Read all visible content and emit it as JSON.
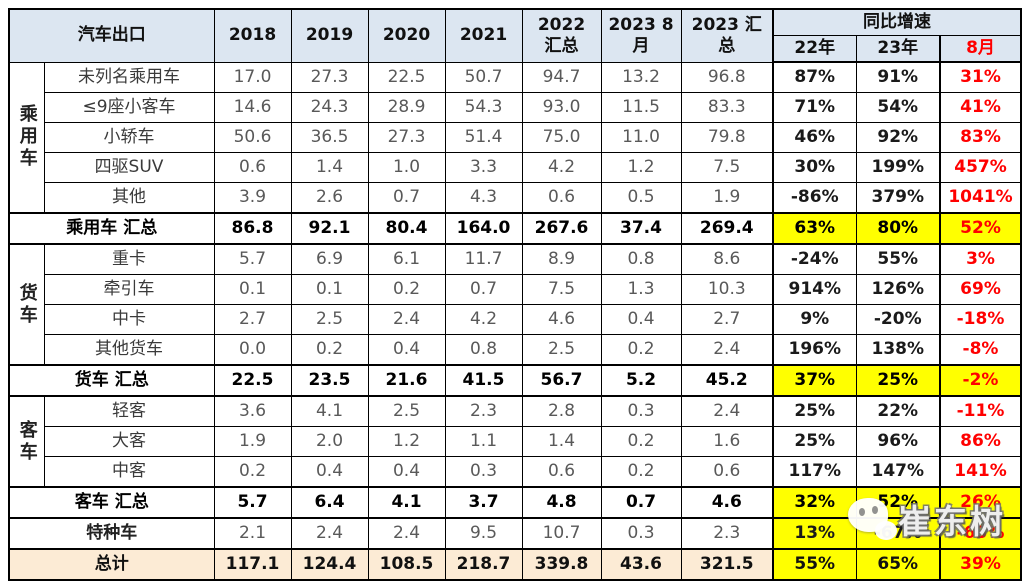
{
  "colors": {
    "header_bg": "#DCE6F1",
    "highlight_yellow": "#FFFF00",
    "total_row_bg": "#FCEBD5",
    "accent_red": "#FF0000",
    "number_gray": "#595959"
  },
  "watermark": {
    "icon": "wechat-icon",
    "text": "崔东树"
  },
  "chart_data": {
    "type": "table",
    "title": "汽车出口",
    "columns": [
      "汽车出口",
      "2018",
      "2019",
      "2020",
      "2021",
      "2022 汇总",
      "2023 8月",
      "2023 汇总",
      "同比增速 22年",
      "同比增速 23年",
      "同比增速 8月"
    ],
    "header": {
      "label": "汽车出口",
      "years": [
        "2018",
        "2019",
        "2020",
        "2021"
      ],
      "col_2022_total": "2022 汇总",
      "col_2023_aug": "2023 8月",
      "col_2023_total": "2023 汇总",
      "growth_title": "同比增速",
      "growth_cols": [
        "22年",
        "23年",
        "8月"
      ]
    },
    "rows": [
      {
        "type": "data",
        "group": {
          "label": "乘用车",
          "span": 5
        },
        "label": "未列名乘用车",
        "values": [
          "17.0",
          "27.3",
          "22.5",
          "50.7",
          "94.7",
          "13.2",
          "96.8"
        ],
        "growth": [
          "87%",
          "91%",
          "31%"
        ]
      },
      {
        "type": "data",
        "label": "≤9座小客车",
        "values": [
          "14.6",
          "24.3",
          "28.9",
          "54.3",
          "93.0",
          "11.5",
          "83.3"
        ],
        "growth": [
          "71%",
          "54%",
          "41%"
        ]
      },
      {
        "type": "data",
        "label": "小轿车",
        "values": [
          "50.6",
          "36.5",
          "27.3",
          "51.4",
          "75.0",
          "11.0",
          "79.8"
        ],
        "growth": [
          "46%",
          "92%",
          "83%"
        ]
      },
      {
        "type": "data",
        "label": "四驱SUV",
        "values": [
          "0.6",
          "1.4",
          "1.0",
          "3.3",
          "4.2",
          "1.2",
          "7.5"
        ],
        "growth": [
          "30%",
          "199%",
          "457%"
        ]
      },
      {
        "type": "data",
        "label": "其他",
        "values": [
          "3.9",
          "2.6",
          "0.7",
          "4.3",
          "0.6",
          "0.5",
          "1.9"
        ],
        "growth": [
          "-86%",
          "379%",
          "1041%"
        ]
      },
      {
        "type": "summary",
        "label": "乘用车 汇总",
        "values": [
          "86.8",
          "92.1",
          "80.4",
          "164.0",
          "267.6",
          "37.4",
          "269.4"
        ],
        "growth": [
          "63%",
          "80%",
          "52%"
        ]
      },
      {
        "type": "data",
        "group": {
          "label": "货车",
          "span": 4
        },
        "label": "重卡",
        "values": [
          "5.7",
          "6.9",
          "6.1",
          "11.7",
          "8.9",
          "0.8",
          "8.6"
        ],
        "growth": [
          "-24%",
          "55%",
          "3%"
        ]
      },
      {
        "type": "data",
        "label": "牵引车",
        "values": [
          "0.1",
          "0.1",
          "0.2",
          "0.7",
          "7.5",
          "1.3",
          "10.3"
        ],
        "growth": [
          "914%",
          "126%",
          "69%"
        ]
      },
      {
        "type": "data",
        "label": "中卡",
        "values": [
          "2.7",
          "2.5",
          "2.4",
          "4.2",
          "4.6",
          "0.4",
          "2.7"
        ],
        "growth": [
          "9%",
          "-20%",
          "-18%"
        ]
      },
      {
        "type": "data",
        "label": "其他货车",
        "values": [
          "0.0",
          "0.2",
          "0.4",
          "0.8",
          "2.5",
          "0.2",
          "2.4"
        ],
        "growth": [
          "196%",
          "138%",
          "-8%"
        ]
      },
      {
        "type": "summary",
        "label": "货车 汇总",
        "values": [
          "22.5",
          "23.5",
          "21.6",
          "41.5",
          "56.7",
          "5.2",
          "45.2"
        ],
        "growth": [
          "37%",
          "25%",
          "-2%"
        ]
      },
      {
        "type": "data",
        "group": {
          "label": "客车",
          "span": 3
        },
        "label": "轻客",
        "values": [
          "3.6",
          "4.1",
          "2.5",
          "2.3",
          "2.8",
          "0.3",
          "2.4"
        ],
        "growth": [
          "25%",
          "22%",
          "-11%"
        ]
      },
      {
        "type": "data",
        "label": "大客",
        "values": [
          "1.9",
          "2.0",
          "1.2",
          "1.1",
          "1.4",
          "0.2",
          "1.6"
        ],
        "growth": [
          "25%",
          "96%",
          "86%"
        ]
      },
      {
        "type": "data",
        "label": "中客",
        "values": [
          "0.2",
          "0.4",
          "0.4",
          "0.3",
          "0.6",
          "0.2",
          "0.6"
        ],
        "growth": [
          "117%",
          "147%",
          "141%"
        ]
      },
      {
        "type": "summary",
        "label": "客车 汇总",
        "values": [
          "5.7",
          "6.4",
          "4.1",
          "3.7",
          "4.8",
          "0.7",
          "4.6"
        ],
        "growth": [
          "32%",
          "52%",
          "26%"
        ]
      },
      {
        "type": "special",
        "label": "特种车",
        "values": [
          "2.1",
          "2.4",
          "2.4",
          "9.5",
          "10.7",
          "0.3",
          "2.3"
        ],
        "growth": [
          "13%",
          "-67%",
          "-63%"
        ]
      },
      {
        "type": "total",
        "label": "总计",
        "values": [
          "117.1",
          "124.4",
          "108.5",
          "218.7",
          "339.8",
          "43.6",
          "321.5"
        ],
        "growth": [
          "55%",
          "65%",
          "39%"
        ]
      }
    ]
  }
}
